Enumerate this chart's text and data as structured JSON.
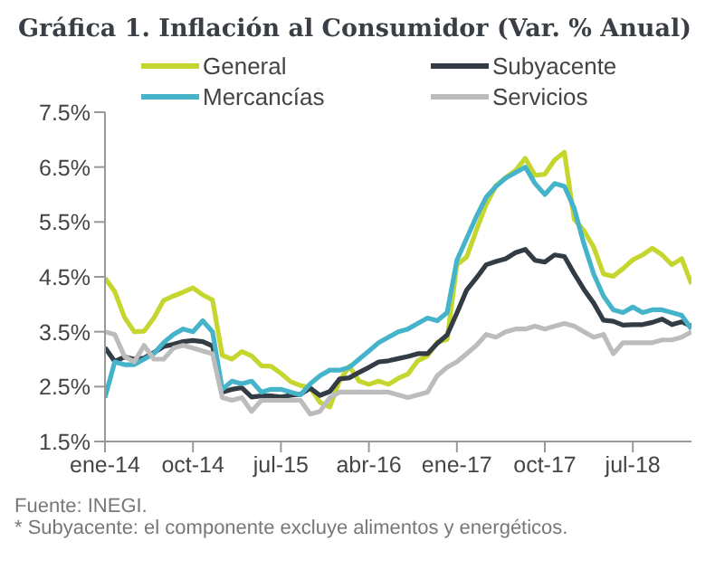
{
  "chart_data": {
    "type": "line",
    "title": "Gráfica 1. Inflación al Consumidor (Var. % Anual)",
    "categories": [
      "ene-14",
      null,
      null,
      null,
      null,
      null,
      null,
      null,
      null,
      "oct-14",
      null,
      null,
      null,
      null,
      null,
      null,
      null,
      null,
      "jul-15",
      null,
      null,
      null,
      null,
      null,
      null,
      null,
      null,
      "abr-16",
      null,
      null,
      null,
      null,
      null,
      null,
      null,
      null,
      "ene-17",
      null,
      null,
      null,
      null,
      null,
      null,
      null,
      null,
      "oct-17",
      null,
      null,
      null,
      null,
      null,
      null,
      null,
      null,
      "jul-18",
      null,
      null,
      null,
      null,
      null,
      null
    ],
    "series": [
      {
        "name": "General",
        "color": "#c5d62e",
        "values": [
          4.48,
          4.23,
          3.76,
          3.5,
          3.51,
          3.75,
          4.07,
          4.15,
          4.22,
          4.3,
          4.17,
          4.08,
          3.07,
          3.0,
          3.14,
          3.06,
          2.88,
          2.87,
          2.74,
          2.59,
          2.52,
          2.48,
          2.21,
          2.13,
          2.61,
          2.87,
          2.6,
          2.54,
          2.6,
          2.54,
          2.65,
          2.73,
          2.97,
          3.06,
          3.31,
          3.36,
          4.72,
          4.86,
          5.35,
          5.82,
          6.16,
          6.31,
          6.44,
          6.66,
          6.35,
          6.37,
          6.63,
          6.77,
          5.55,
          5.34,
          5.04,
          4.55,
          4.51,
          4.65,
          4.81,
          4.9,
          5.02,
          4.9,
          4.72,
          4.83,
          4.37
        ]
      },
      {
        "name": "Subyacente",
        "color": "#333c45",
        "values": [
          3.21,
          2.96,
          3.04,
          3.0,
          3.02,
          3.12,
          3.23,
          3.27,
          3.32,
          3.34,
          3.32,
          3.24,
          2.4,
          2.45,
          2.48,
          2.31,
          2.33,
          2.33,
          2.31,
          2.34,
          2.36,
          2.47,
          2.34,
          2.41,
          2.64,
          2.66,
          2.76,
          2.85,
          2.95,
          2.97,
          3.01,
          3.05,
          3.1,
          3.1,
          3.29,
          3.44,
          3.84,
          4.26,
          4.48,
          4.72,
          4.78,
          4.83,
          4.94,
          5.0,
          4.8,
          4.77,
          4.9,
          4.87,
          4.56,
          4.27,
          4.02,
          3.71,
          3.69,
          3.62,
          3.63,
          3.63,
          3.67,
          3.73,
          3.63,
          3.68,
          3.6
        ]
      },
      {
        "name": "Mercancías",
        "color": "#45b3c9",
        "values": [
          2.3,
          2.95,
          2.9,
          2.9,
          3.0,
          3.1,
          3.3,
          3.45,
          3.55,
          3.5,
          3.7,
          3.5,
          2.45,
          2.6,
          2.55,
          2.6,
          2.4,
          2.45,
          2.45,
          2.4,
          2.35,
          2.55,
          2.7,
          2.8,
          2.8,
          2.85,
          3.0,
          3.15,
          3.3,
          3.4,
          3.5,
          3.55,
          3.65,
          3.75,
          3.7,
          3.85,
          4.8,
          5.2,
          5.6,
          5.95,
          6.15,
          6.3,
          6.4,
          6.5,
          6.2,
          6.0,
          6.2,
          6.15,
          5.75,
          5.1,
          4.55,
          4.15,
          3.9,
          3.85,
          3.95,
          3.85,
          3.9,
          3.9,
          3.85,
          3.8,
          3.55
        ]
      },
      {
        "name": "Servicios",
        "color": "#bcbcbc",
        "values": [
          3.5,
          3.45,
          3.05,
          2.95,
          3.25,
          3.0,
          3.0,
          3.2,
          3.25,
          3.2,
          3.15,
          3.1,
          2.3,
          2.25,
          2.3,
          2.05,
          2.25,
          2.25,
          2.25,
          2.25,
          2.25,
          2.0,
          2.05,
          2.3,
          2.4,
          2.4,
          2.4,
          2.4,
          2.4,
          2.4,
          2.35,
          2.3,
          2.35,
          2.4,
          2.7,
          2.85,
          2.95,
          3.1,
          3.25,
          3.45,
          3.4,
          3.5,
          3.55,
          3.55,
          3.6,
          3.55,
          3.6,
          3.65,
          3.6,
          3.5,
          3.4,
          3.45,
          3.1,
          3.3,
          3.3,
          3.3,
          3.3,
          3.35,
          3.35,
          3.4,
          3.5
        ]
      }
    ],
    "ylim": [
      1.5,
      7.5
    ],
    "yticks": [
      {
        "value": 1.5,
        "label": "1.5%"
      },
      {
        "value": 2.5,
        "label": "2.5%"
      },
      {
        "value": 3.5,
        "label": "3.5%"
      },
      {
        "value": 4.5,
        "label": "4.5%"
      },
      {
        "value": 5.5,
        "label": "5.5%"
      },
      {
        "value": 6.5,
        "label": "6.5%"
      },
      {
        "value": 7.5,
        "label": "7.5%"
      }
    ],
    "grid": false,
    "legend": "top",
    "marker": "none",
    "line_style": "solid",
    "annotations": [
      "Fuente: INEGI.",
      "* Subyacente: el componente excluye alimentos y energéticos."
    ]
  }
}
